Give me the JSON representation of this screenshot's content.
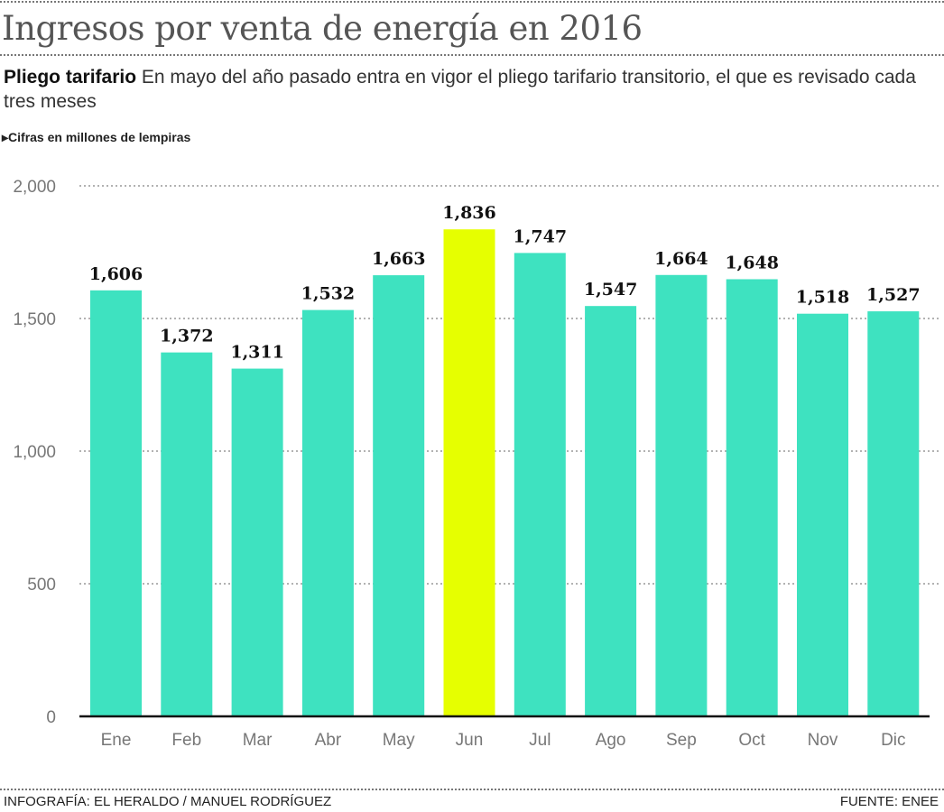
{
  "title": "Ingresos por venta de energía en  2016",
  "subtitle": {
    "lead": "Pliego tarifario",
    "text": " En mayo del año pasado entra en vigor el pliego tarifario transitorio, el que es revisado cada tres meses"
  },
  "unit_note": "Cifras en millones de lempiras",
  "footer": {
    "credit": "INFOGRAFÍA: EL HERALDO / MANUEL RODRÍGUEZ",
    "source": "FUENTE: ENEE"
  },
  "chart_data": {
    "type": "bar",
    "title": "Ingresos por venta de energía en  2016",
    "categories": [
      "Ene",
      "Feb",
      "Mar",
      "Abr",
      "May",
      "Jun",
      "Jul",
      "Ago",
      "Sep",
      "Oct",
      "Nov",
      "Dic"
    ],
    "values": [
      1606,
      1372,
      1311,
      1532,
      1663,
      1836,
      1747,
      1547,
      1664,
      1648,
      1518,
      1527
    ],
    "value_labels": [
      "1,606",
      "1,372",
      "1,311",
      "1,532",
      "1,663",
      "1,836",
      "1,747",
      "1,547",
      "1,664",
      "1,648",
      "1,518",
      "1,527"
    ],
    "ylim": [
      0,
      2000
    ],
    "yticks": [
      0,
      500,
      1000,
      1500,
      2000
    ],
    "ytick_labels": [
      "0",
      "500",
      "1,000",
      "1,500",
      "2,000"
    ],
    "grid": true,
    "colors": {
      "bar": "#3ee2c0",
      "highlight": "#e6ff00"
    },
    "highlight_category": "Jun"
  }
}
